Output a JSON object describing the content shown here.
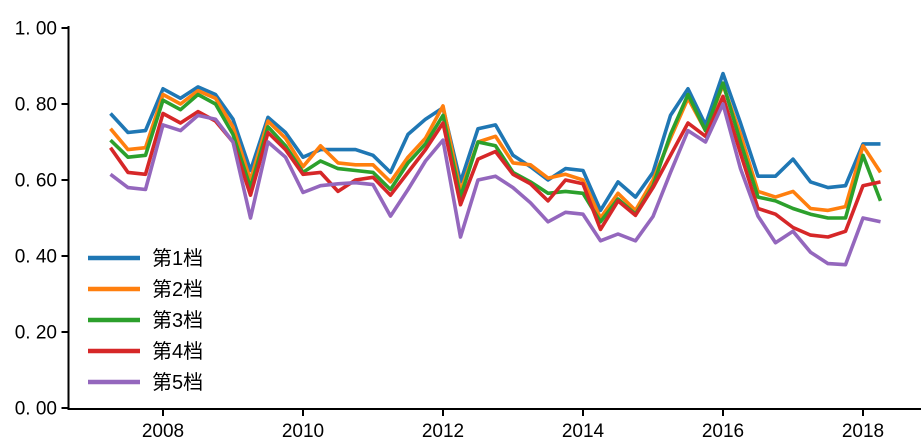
{
  "figure": {
    "background_color": "#ffffff",
    "axis_color": "#000000"
  },
  "chart_data": {
    "type": "line",
    "grid": false,
    "legend_position": "lower-left",
    "x_unit": "year-quarterly",
    "xlim": [
      2006.65,
      2018.85
    ],
    "ylim": [
      0.0,
      1.0
    ],
    "x_ticks": [
      2008,
      2010,
      2012,
      2014,
      2016,
      2018
    ],
    "x_tick_labels": [
      "2008",
      "2010",
      "2012",
      "2014",
      "2016",
      "2018"
    ],
    "y_ticks": [
      0.0,
      0.2,
      0.4,
      0.6,
      0.8,
      1.0
    ],
    "y_tick_labels": [
      "0. 00",
      "0. 20",
      "0. 40",
      "0. 60",
      "0. 80",
      "1. 00"
    ],
    "x": [
      2007.25,
      2007.5,
      2007.75,
      2008,
      2008.25,
      2008.5,
      2008.75,
      2009,
      2009.25,
      2009.5,
      2009.75,
      2010,
      2010.25,
      2010.5,
      2010.75,
      2011,
      2011.25,
      2011.5,
      2011.75,
      2012,
      2012.25,
      2012.5,
      2012.75,
      2013,
      2013.25,
      2013.5,
      2013.75,
      2014,
      2014.25,
      2014.5,
      2014.75,
      2015,
      2015.25,
      2015.5,
      2015.75,
      2016,
      2016.25,
      2016.5,
      2016.75,
      2017,
      2017.25,
      2017.5,
      2017.75,
      2018,
      2018.25
    ],
    "series": [
      {
        "name": "第1档",
        "color": "#1f77b4",
        "values": [
          0.775,
          0.725,
          0.73,
          0.84,
          0.815,
          0.845,
          0.825,
          0.76,
          0.625,
          0.765,
          0.725,
          0.66,
          0.68,
          0.68,
          0.68,
          0.665,
          0.62,
          0.72,
          0.76,
          0.79,
          0.595,
          0.735,
          0.745,
          0.665,
          0.635,
          0.6,
          0.63,
          0.625,
          0.52,
          0.595,
          0.555,
          0.62,
          0.77,
          0.84,
          0.745,
          0.88,
          0.75,
          0.61,
          0.61,
          0.655,
          0.595,
          0.58,
          0.585,
          0.695,
          0.695
        ]
      },
      {
        "name": "第2档",
        "color": "#ff7f0e",
        "values": [
          0.735,
          0.68,
          0.685,
          0.825,
          0.8,
          0.835,
          0.815,
          0.74,
          0.6,
          0.755,
          0.71,
          0.635,
          0.69,
          0.645,
          0.64,
          0.64,
          0.595,
          0.66,
          0.71,
          0.795,
          0.57,
          0.7,
          0.715,
          0.645,
          0.64,
          0.605,
          0.615,
          0.6,
          0.5,
          0.565,
          0.52,
          0.6,
          0.71,
          0.815,
          0.73,
          0.85,
          0.72,
          0.57,
          0.555,
          0.57,
          0.525,
          0.52,
          0.53,
          0.69,
          0.62
        ]
      },
      {
        "name": "第3档",
        "color": "#2ca02c",
        "values": [
          0.705,
          0.66,
          0.665,
          0.81,
          0.785,
          0.825,
          0.8,
          0.72,
          0.58,
          0.74,
          0.69,
          0.62,
          0.65,
          0.63,
          0.625,
          0.62,
          0.575,
          0.645,
          0.695,
          0.77,
          0.555,
          0.7,
          0.69,
          0.62,
          0.595,
          0.565,
          0.57,
          0.565,
          0.49,
          0.55,
          0.51,
          0.585,
          0.72,
          0.825,
          0.73,
          0.855,
          0.7,
          0.555,
          0.545,
          0.525,
          0.51,
          0.5,
          0.5,
          0.665,
          0.545
        ]
      },
      {
        "name": "第4档",
        "color": "#d62728",
        "values": [
          0.685,
          0.62,
          0.615,
          0.775,
          0.75,
          0.78,
          0.755,
          0.7,
          0.56,
          0.725,
          0.68,
          0.615,
          0.62,
          0.57,
          0.6,
          0.607,
          0.56,
          0.62,
          0.68,
          0.75,
          0.535,
          0.655,
          0.675,
          0.615,
          0.59,
          0.545,
          0.6,
          0.59,
          0.47,
          0.545,
          0.507,
          0.58,
          0.665,
          0.75,
          0.715,
          0.82,
          0.67,
          0.525,
          0.51,
          0.475,
          0.455,
          0.45,
          0.465,
          0.585,
          0.595
        ]
      },
      {
        "name": "第5档",
        "color": "#9467bd",
        "values": [
          0.615,
          0.58,
          0.575,
          0.745,
          0.73,
          0.77,
          0.76,
          0.7,
          0.5,
          0.7,
          0.66,
          0.567,
          0.585,
          0.59,
          0.593,
          0.588,
          0.505,
          0.575,
          0.65,
          0.705,
          0.45,
          0.6,
          0.61,
          0.58,
          0.54,
          0.49,
          0.515,
          0.51,
          0.44,
          0.458,
          0.44,
          0.504,
          0.62,
          0.73,
          0.7,
          0.8,
          0.63,
          0.505,
          0.435,
          0.465,
          0.41,
          0.38,
          0.377,
          0.5,
          0.49
        ]
      }
    ]
  }
}
